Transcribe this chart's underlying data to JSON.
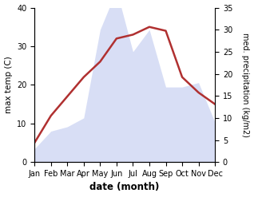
{
  "months": [
    "Jan",
    "Feb",
    "Mar",
    "Apr",
    "May",
    "Jun",
    "Jul",
    "Aug",
    "Sep",
    "Oct",
    "Nov",
    "Dec"
  ],
  "month_x": [
    1,
    2,
    3,
    4,
    5,
    6,
    7,
    8,
    9,
    10,
    11,
    12
  ],
  "max_temp": [
    5,
    12,
    17,
    22,
    26,
    32,
    33,
    35,
    34,
    22,
    18,
    15
  ],
  "precipitation": [
    3,
    7,
    8,
    10,
    30,
    39,
    25,
    30,
    17,
    17,
    18,
    9
  ],
  "temp_color": "#b03030",
  "precip_color": "#b8c4ee",
  "left_ylim": [
    0,
    40
  ],
  "right_ylim": [
    0,
    35
  ],
  "left_yticks": [
    0,
    10,
    20,
    30,
    40
  ],
  "right_yticks": [
    0,
    5,
    10,
    15,
    20,
    25,
    30,
    35
  ],
  "xlabel": "date (month)",
  "ylabel_left": "max temp (C)",
  "ylabel_right": "med. precipitation (kg/m2)",
  "figsize": [
    3.18,
    2.47
  ],
  "dpi": 100
}
